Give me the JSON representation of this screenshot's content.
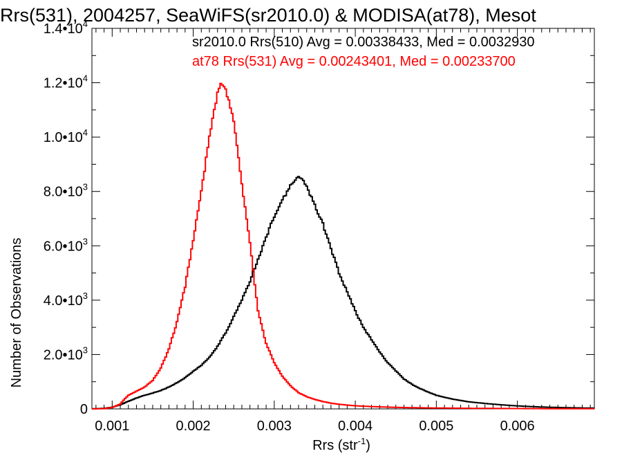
{
  "chart_data": {
    "type": "line",
    "title": "Rrs(531), 2004257, SeaWiFS(sr2010.0) & MODISA(at78), Mesot",
    "xlabel": "Rrs (str",
    "xlabel_sup": "-1",
    "xlabel_end": ")",
    "ylabel": "Number of Observations",
    "xlim": [
      0.00075,
      0.00695
    ],
    "ylim": [
      0,
      14000
    ],
    "x_ticks": [
      0.001,
      0.002,
      0.003,
      0.004,
      0.005,
      0.006
    ],
    "x_tick_labels": [
      "0.001",
      "0.002",
      "0.003",
      "0.004",
      "0.005",
      "0.006"
    ],
    "y_ticks": [
      0,
      2000,
      4000,
      6000,
      8000,
      10000,
      12000,
      14000
    ],
    "y_tick_labels": [
      {
        "base": "0",
        "exp": ""
      },
      {
        "base": "2.0•10",
        "exp": "3"
      },
      {
        "base": "4.0•10",
        "exp": "3"
      },
      {
        "base": "6.0•10",
        "exp": "3"
      },
      {
        "base": "8.0•10",
        "exp": "3"
      },
      {
        "base": "1.0•10",
        "exp": "4"
      },
      {
        "base": "1.2•10",
        "exp": "4"
      },
      {
        "base": "1.4•10",
        "exp": "4"
      }
    ],
    "grid": false,
    "legend_position": "top-right",
    "series": [
      {
        "name": "sr2010.0 Rrs(510) Avg = 0.00338433, Med = 0.0032930",
        "color": "#000000",
        "style": "step",
        "points": [
          [
            0.00075,
            0
          ],
          [
            0.0009,
            20
          ],
          [
            0.001,
            60
          ],
          [
            0.0011,
            150
          ],
          [
            0.0012,
            280
          ],
          [
            0.0013,
            400
          ],
          [
            0.0014,
            500
          ],
          [
            0.0015,
            580
          ],
          [
            0.0016,
            680
          ],
          [
            0.0017,
            800
          ],
          [
            0.0018,
            960
          ],
          [
            0.0019,
            1150
          ],
          [
            0.002,
            1380
          ],
          [
            0.0021,
            1600
          ],
          [
            0.0022,
            1900
          ],
          [
            0.0023,
            2300
          ],
          [
            0.0024,
            2800
          ],
          [
            0.0025,
            3400
          ],
          [
            0.0026,
            4000
          ],
          [
            0.0027,
            4700
          ],
          [
            0.0028,
            5500
          ],
          [
            0.0029,
            6300
          ],
          [
            0.003,
            7100
          ],
          [
            0.0031,
            7700
          ],
          [
            0.0032,
            8200
          ],
          [
            0.00325,
            8400
          ],
          [
            0.0033,
            8550
          ],
          [
            0.00335,
            8450
          ],
          [
            0.0034,
            8200
          ],
          [
            0.0035,
            7500
          ],
          [
            0.0036,
            6800
          ],
          [
            0.0037,
            5900
          ],
          [
            0.0038,
            5000
          ],
          [
            0.0039,
            4300
          ],
          [
            0.004,
            3600
          ],
          [
            0.0041,
            3000
          ],
          [
            0.0042,
            2550
          ],
          [
            0.0043,
            2100
          ],
          [
            0.0044,
            1700
          ],
          [
            0.0045,
            1400
          ],
          [
            0.0046,
            1100
          ],
          [
            0.0047,
            900
          ],
          [
            0.0048,
            750
          ],
          [
            0.0049,
            620
          ],
          [
            0.005,
            500
          ],
          [
            0.0052,
            360
          ],
          [
            0.0054,
            260
          ],
          [
            0.0056,
            200
          ],
          [
            0.0058,
            150
          ],
          [
            0.006,
            110
          ],
          [
            0.0062,
            80
          ],
          [
            0.0064,
            60
          ],
          [
            0.0066,
            45
          ],
          [
            0.0068,
            35
          ],
          [
            0.00695,
            30
          ]
        ]
      },
      {
        "name": "at78 Rrs(531) Avg = 0.00243401, Med = 0.00233700",
        "color": "#ff0000",
        "style": "step",
        "points": [
          [
            0.00075,
            0
          ],
          [
            0.0009,
            10
          ],
          [
            0.001,
            50
          ],
          [
            0.0011,
            180
          ],
          [
            0.00115,
            350
          ],
          [
            0.0012,
            500
          ],
          [
            0.0013,
            650
          ],
          [
            0.0014,
            800
          ],
          [
            0.0015,
            1050
          ],
          [
            0.0016,
            1500
          ],
          [
            0.0017,
            2200
          ],
          [
            0.0018,
            3200
          ],
          [
            0.0019,
            4500
          ],
          [
            0.002,
            6200
          ],
          [
            0.0021,
            8000
          ],
          [
            0.0022,
            10000
          ],
          [
            0.0023,
            11600
          ],
          [
            0.00235,
            12000
          ],
          [
            0.0024,
            11800
          ],
          [
            0.0025,
            10600
          ],
          [
            0.0026,
            8300
          ],
          [
            0.0027,
            6100
          ],
          [
            0.0028,
            3600
          ],
          [
            0.0029,
            2400
          ],
          [
            0.003,
            1700
          ],
          [
            0.0031,
            1200
          ],
          [
            0.0032,
            850
          ],
          [
            0.0033,
            600
          ],
          [
            0.0034,
            450
          ],
          [
            0.0035,
            350
          ],
          [
            0.0036,
            270
          ],
          [
            0.0037,
            210
          ],
          [
            0.0038,
            170
          ],
          [
            0.0039,
            140
          ],
          [
            0.004,
            115
          ],
          [
            0.0042,
            85
          ],
          [
            0.0044,
            65
          ],
          [
            0.0046,
            50
          ],
          [
            0.0048,
            40
          ],
          [
            0.005,
            32
          ],
          [
            0.0054,
            22
          ],
          [
            0.0058,
            15
          ],
          [
            0.0062,
            10
          ],
          [
            0.0066,
            6
          ],
          [
            0.00695,
            4
          ]
        ]
      }
    ]
  }
}
